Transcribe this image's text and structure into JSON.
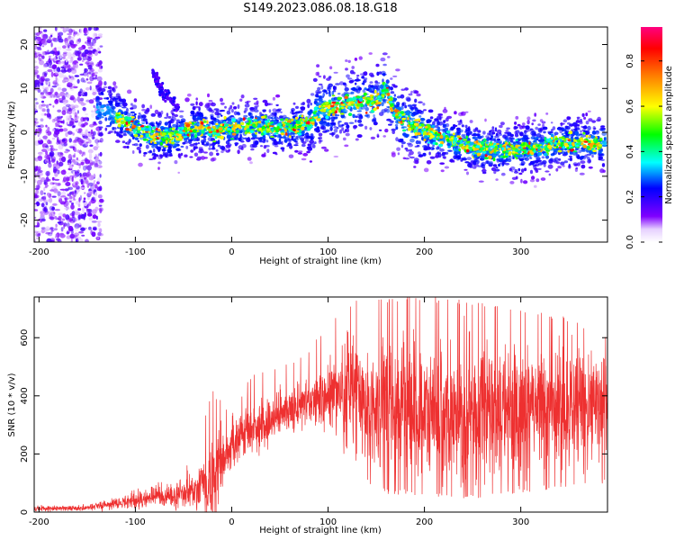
{
  "title": "S149.2023.086.08.18.G18",
  "chart_data": [
    {
      "type": "heatmap",
      "xlabel": "Height of straight line (km)",
      "ylabel": "Frequency (Hz)",
      "xlim": [
        -205,
        390
      ],
      "ylim": [
        -25,
        24
      ],
      "xticks": [
        -200,
        -100,
        0,
        100,
        200,
        300
      ],
      "yticks": [
        -20,
        -10,
        0,
        10,
        20
      ],
      "ridge": {
        "x": [
          -130,
          -100,
          -80,
          -60,
          -40,
          -20,
          0,
          20,
          40,
          60,
          80,
          90,
          110,
          130,
          150,
          160,
          170,
          200,
          230,
          260,
          300,
          340,
          385
        ],
        "y": [
          5,
          1,
          -1,
          -1,
          1,
          0.5,
          1,
          1.5,
          1,
          1,
          2,
          5,
          6,
          7,
          7,
          10,
          4,
          0,
          -2,
          -4,
          -4,
          -2.5,
          -2.5
        ]
      },
      "colorbar": {
        "label": "Normalized spectral amplitude",
        "range": [
          0,
          0.95
        ],
        "ticks": [
          0.0,
          0.2,
          0.4,
          0.6,
          0.8
        ],
        "tick_labels": [
          "0.0",
          "0.2",
          "0.4",
          "0.6",
          "0.8"
        ],
        "colormap": [
          "#ffffff",
          "#8000ff",
          "#0000ff",
          "#00ffff",
          "#00ff00",
          "#ffff00",
          "#ff8000",
          "#ff0000",
          "#ff0080"
        ]
      }
    },
    {
      "type": "line",
      "xlabel": "Height of straight line (km)",
      "ylabel": "SNR (10 * v/v)",
      "xlim": [
        -205,
        390
      ],
      "ylim": [
        0,
        740
      ],
      "xticks": [
        -200,
        -100,
        0,
        100,
        200,
        300
      ],
      "yticks": [
        0,
        200,
        400,
        600
      ],
      "color": "#ee3030",
      "envelope": {
        "x": [
          -205,
          -150,
          -130,
          -100,
          -60,
          -40,
          -20,
          0,
          20,
          40,
          60,
          80,
          100,
          120,
          140,
          160,
          180,
          200,
          230,
          260,
          300,
          340,
          390
        ],
        "mean": [
          10,
          15,
          25,
          40,
          60,
          80,
          110,
          230,
          290,
          320,
          350,
          380,
          400,
          410,
          380,
          360,
          350,
          340,
          320,
          330,
          350,
          360,
          360
        ],
        "low": [
          0,
          0,
          0,
          5,
          10,
          20,
          40,
          140,
          220,
          270,
          300,
          330,
          300,
          200,
          100,
          60,
          60,
          50,
          40,
          40,
          60,
          80,
          100
        ],
        "high": [
          25,
          30,
          50,
          80,
          120,
          180,
          420,
          340,
          470,
          500,
          520,
          560,
          650,
          720,
          740,
          740,
          740,
          740,
          740,
          720,
          700,
          680,
          620
        ]
      }
    }
  ]
}
